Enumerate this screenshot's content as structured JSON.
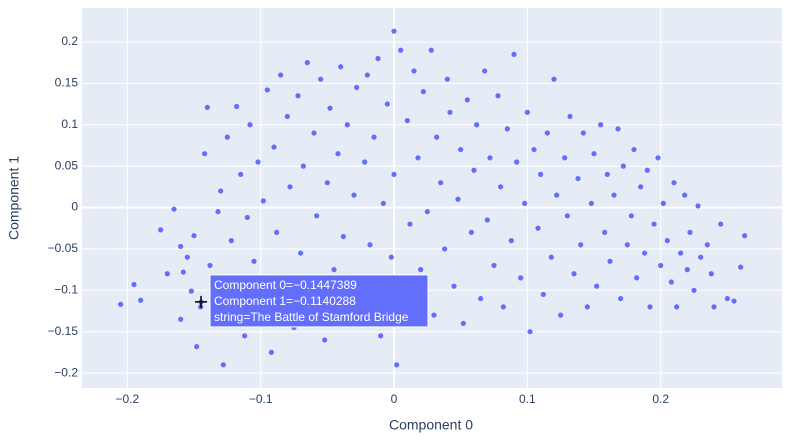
{
  "chart_data": {
    "type": "scatter",
    "x_label": "Component 0",
    "y_label": "Component 1",
    "xlim": [
      -0.234,
      0.291
    ],
    "ylim": [
      -0.218,
      0.241
    ],
    "xticks": [
      {
        "value": -0.2,
        "label": "−0.2"
      },
      {
        "value": -0.1,
        "label": "−0.1"
      },
      0,
      0.1,
      0.2
    ],
    "yticks": [
      {
        "value": -0.2,
        "label": "−0.2"
      },
      {
        "value": -0.15,
        "label": "−0.15"
      },
      {
        "value": -0.1,
        "label": "−0.1"
      },
      {
        "value": -0.05,
        "label": "−0.05"
      },
      0,
      0.05,
      0.1,
      0.15,
      0.2
    ],
    "grid": true,
    "background": "#e5ecf6",
    "series": [
      {
        "color": "#636efa",
        "x": [
          -0.205,
          -0.195,
          -0.19,
          -0.175,
          -0.17,
          -0.165,
          -0.16,
          -0.16,
          -0.158,
          -0.155,
          -0.152,
          -0.15,
          -0.148,
          -0.145,
          -0.142,
          -0.14,
          -0.138,
          -0.135,
          -0.132,
          -0.13,
          -0.128,
          -0.125,
          -0.122,
          -0.12,
          -0.118,
          -0.115,
          -0.112,
          -0.11,
          -0.108,
          -0.105,
          -0.102,
          -0.1,
          -0.098,
          -0.095,
          -0.092,
          -0.09,
          -0.088,
          -0.085,
          -0.082,
          -0.08,
          -0.078,
          -0.075,
          -0.072,
          -0.07,
          -0.068,
          -0.065,
          -0.062,
          -0.06,
          -0.058,
          -0.055,
          -0.052,
          -0.05,
          -0.048,
          -0.045,
          -0.042,
          -0.04,
          -0.038,
          -0.035,
          -0.032,
          -0.03,
          -0.028,
          -0.025,
          -0.022,
          -0.02,
          -0.018,
          -0.015,
          -0.012,
          -0.01,
          -0.008,
          -0.005,
          -0.002,
          0,
          0.002,
          0.005,
          0.008,
          0.01,
          0.012,
          0.015,
          0.018,
          0.02,
          0.022,
          0.025,
          0.028,
          0.03,
          0.032,
          0.035,
          0.038,
          0.04,
          0.042,
          0.045,
          0.048,
          0.05,
          0.052,
          0.055,
          0.058,
          0.06,
          0.062,
          0.065,
          0.068,
          0.07,
          0.072,
          0.075,
          0.078,
          0.08,
          0.082,
          0.085,
          0.088,
          0.09,
          0.092,
          0.095,
          0.098,
          0.1,
          0.102,
          0.105,
          0.108,
          0.11,
          0.112,
          0.115,
          0.118,
          0.12,
          0.122,
          0.125,
          0.128,
          0.13,
          0.132,
          0.135,
          0.138,
          0.14,
          0.142,
          0.145,
          0.148,
          0.15,
          0.152,
          0.155,
          0.158,
          0.16,
          0.162,
          0.165,
          0.168,
          0.17,
          0.172,
          0.175,
          0.178,
          0.18,
          0.182,
          0.185,
          0.188,
          0.19,
          0.192,
          0.195,
          0.198,
          0.2,
          0.202,
          0.205,
          0.208,
          0.21,
          0.212,
          0.215,
          0.218,
          0.22,
          0.222,
          0.225,
          0.228,
          0.23,
          0.235,
          0.238,
          0.24,
          0.245,
          0.25,
          0.255,
          0.26,
          0.263,
          0,
          -0.1447389
        ],
        "y": [
          -0.117,
          -0.093,
          -0.112,
          -0.027,
          -0.08,
          -0.002,
          -0.047,
          -0.135,
          -0.078,
          -0.06,
          -0.101,
          -0.034,
          -0.168,
          -0.12,
          0.065,
          0.121,
          -0.07,
          -0.142,
          -0.005,
          0.02,
          -0.19,
          0.085,
          -0.04,
          -0.095,
          0.122,
          0.04,
          -0.155,
          -0.012,
          0.1,
          -0.065,
          0.055,
          -0.125,
          0.008,
          0.142,
          -0.175,
          0.073,
          -0.03,
          0.16,
          -0.088,
          0.11,
          0.025,
          -0.145,
          0.135,
          -0.055,
          0.05,
          0.175,
          -0.105,
          0.09,
          -0.01,
          0.155,
          -0.16,
          0.03,
          0.12,
          -0.075,
          0.065,
          0.17,
          -0.035,
          0.1,
          -0.12,
          0.015,
          0.145,
          -0.085,
          0.055,
          0.16,
          -0.045,
          0.085,
          0.18,
          -0.155,
          0.005,
          0.125,
          -0.06,
          0.04,
          -0.19,
          0.19,
          -0.1,
          0.105,
          -0.02,
          0.165,
          0.06,
          -0.075,
          0.14,
          -0.005,
          0.19,
          -0.13,
          0.085,
          0.03,
          -0.05,
          0.155,
          0.115,
          -0.095,
          0.01,
          0.07,
          -0.14,
          0.13,
          -0.03,
          0.045,
          0.1,
          -0.11,
          0.165,
          -0.015,
          0.06,
          -0.07,
          0.135,
          0.025,
          -0.12,
          0.095,
          -0.04,
          0.185,
          0.055,
          -0.085,
          0.005,
          0.115,
          -0.15,
          0.07,
          -0.025,
          0.04,
          -0.105,
          0.09,
          -0.06,
          0.155,
          0.015,
          -0.13,
          0.06,
          -0.01,
          0.11,
          -0.08,
          0.035,
          -0.045,
          0.09,
          -0.12,
          0.005,
          0.065,
          -0.095,
          0.1,
          -0.03,
          0.04,
          -0.065,
          0.015,
          0.095,
          -0.11,
          0.05,
          -0.045,
          -0.01,
          0.07,
          -0.085,
          0.025,
          -0.055,
          0.045,
          -0.12,
          -0.02,
          0.06,
          -0.07,
          0.005,
          -0.04,
          -0.09,
          0.03,
          -0.12,
          -0.055,
          0.015,
          -0.075,
          -0.03,
          -0.1,
          0.002,
          -0.06,
          -0.045,
          -0.08,
          -0.12,
          -0.02,
          -0.11,
          -0.113,
          -0.072,
          -0.034,
          0.213,
          -0.1140288
        ]
      }
    ],
    "hover": {
      "x": -0.1447389,
      "y": -0.1140288,
      "color": "#636efa",
      "lines": [
        "Component 0=−0.1447389",
        "Component 1=−0.1140288",
        "string=The Battle of Stamford Bridge"
      ]
    }
  }
}
